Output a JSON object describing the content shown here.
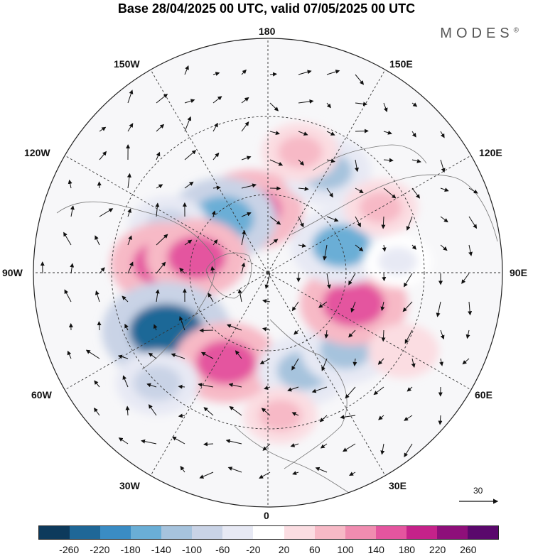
{
  "title": "Base 28/04/2025 00 UTC, valid 07/05/2025 00 UTC",
  "brand": "MODES",
  "brand_mark": "®",
  "longitude_labels": {
    "top": "180",
    "bottom": "0",
    "left": "90W",
    "right": "90E",
    "upper_left": "150W",
    "upper_right": "150E",
    "mid_upper_left": "120W",
    "mid_upper_right": "120E",
    "mid_lower_left": "60W",
    "mid_lower_right": "60E",
    "lower_left": "30W",
    "lower_right": "30E"
  },
  "reference_vector": {
    "label": "30"
  },
  "colorbar": {
    "colors": [
      "#0d3a5c",
      "#1f6797",
      "#3a8cc4",
      "#6aaed6",
      "#a6c3dd",
      "#c9d3e6",
      "#e7e9f4",
      "#ffffff",
      "#fbdde2",
      "#f7b9c6",
      "#f08cb0",
      "#e4559f",
      "#c5228a",
      "#8e0f7a",
      "#5a086c"
    ],
    "ticks": [
      "-260",
      "-220",
      "-180",
      "-140",
      "-100",
      "-60",
      "-20",
      "20",
      "60",
      "100",
      "140",
      "180",
      "220",
      "260"
    ]
  },
  "anomaly_cells": [
    {
      "lon": -165,
      "lat": 65,
      "value": 160
    },
    {
      "lon": -140,
      "lat": 63,
      "value": -170
    },
    {
      "lon": -115,
      "lat": 48,
      "value": -80
    },
    {
      "lon": -95,
      "lat": 50,
      "value": 170
    },
    {
      "lon": -102,
      "lat": 62,
      "value": 150
    },
    {
      "lon": -60,
      "lat": 45,
      "value": -240
    },
    {
      "lon": -25,
      "lat": 52,
      "value": 160
    },
    {
      "lon": -45,
      "lat": 30,
      "value": -90
    },
    {
      "lon": 20,
      "lat": 50,
      "value": -120
    },
    {
      "lon": 45,
      "lat": 48,
      "value": -110
    },
    {
      "lon": 70,
      "lat": 55,
      "value": 170
    },
    {
      "lon": 110,
      "lat": 60,
      "value": -150
    },
    {
      "lon": 150,
      "lat": 45,
      "value": -110
    },
    {
      "lon": 165,
      "lat": 42,
      "value": 70
    },
    {
      "lon": 120,
      "lat": 40,
      "value": 60
    },
    {
      "lon": 95,
      "lat": 40,
      "value": -40
    },
    {
      "lon": 60,
      "lat": 30,
      "value": 50
    },
    {
      "lon": 5,
      "lat": 35,
      "value": 60
    }
  ]
}
